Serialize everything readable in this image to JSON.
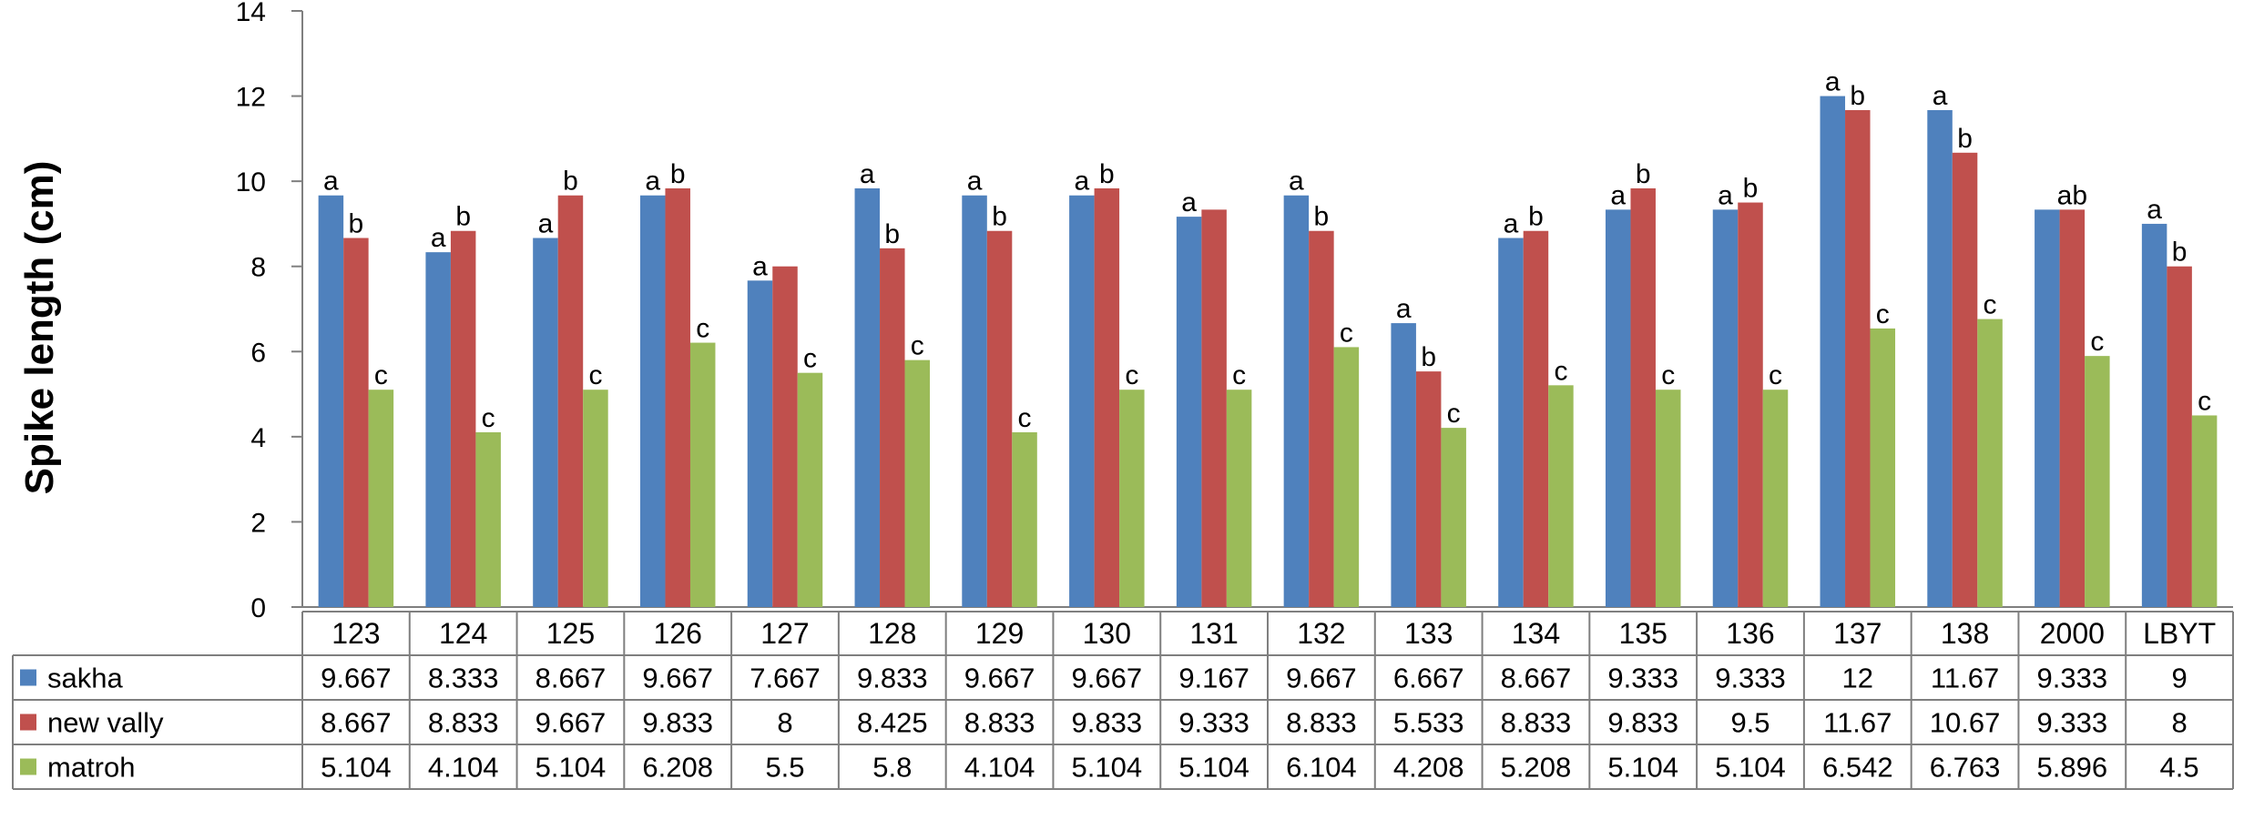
{
  "chart_data": {
    "type": "bar",
    "title": "",
    "xlabel": "",
    "ylabel": "Spike length  (cm)",
    "ylim": [
      0,
      14
    ],
    "yticks": [
      0,
      2,
      4,
      6,
      8,
      10,
      12,
      14
    ],
    "grid": false,
    "legend": "data-table-left",
    "categories": [
      "123",
      "124",
      "125",
      "126",
      "127",
      "128",
      "129",
      "130",
      "131",
      "132",
      "133",
      "134",
      "135",
      "136",
      "137",
      "138",
      "2000",
      "LBYT"
    ],
    "series": [
      {
        "name": "sakha",
        "color": "#4F81BD",
        "values": [
          9.667,
          8.333,
          8.667,
          9.667,
          7.667,
          9.833,
          9.667,
          9.667,
          9.167,
          9.667,
          6.667,
          8.667,
          9.333,
          9.333,
          12,
          11.67,
          9.333,
          9
        ],
        "labels": [
          "9.667",
          "8.333",
          "8.667",
          "9.667",
          "7.667",
          "9.833",
          "9.667",
          "9.667",
          "9.167",
          "9.667",
          "6.667",
          "8.667",
          "9.333",
          "9.333",
          "12",
          "11.67",
          "9.333",
          "9"
        ],
        "letters": [
          "a",
          "a",
          "a",
          "a",
          "a",
          "a",
          "a",
          "a",
          "a",
          "a",
          "a",
          "a",
          "a",
          "a",
          "a",
          "a",
          "",
          "a"
        ]
      },
      {
        "name": "new vally",
        "color": "#C0504D",
        "values": [
          8.667,
          8.833,
          9.667,
          9.833,
          8,
          8.425,
          8.833,
          9.833,
          9.333,
          8.833,
          5.533,
          8.833,
          9.833,
          9.5,
          11.67,
          10.67,
          9.333,
          8
        ],
        "labels": [
          "8.667",
          "8.833",
          "9.667",
          "9.833",
          "8",
          "8.425",
          "8.833",
          "9.833",
          "9.333",
          "8.833",
          "5.533",
          "8.833",
          "9.833",
          "9.5",
          "11.67",
          "10.67",
          "9.333",
          "8"
        ],
        "letters": [
          "b",
          "b",
          "b",
          "b",
          "",
          "b",
          "b",
          "b",
          "",
          "b",
          "b",
          "b",
          "b",
          "b",
          "b",
          "b",
          "ab",
          "b"
        ]
      },
      {
        "name": "matroh",
        "color": "#9BBB59",
        "values": [
          5.104,
          4.104,
          5.104,
          6.208,
          5.5,
          5.8,
          4.104,
          5.104,
          5.104,
          6.104,
          4.208,
          5.208,
          5.104,
          5.104,
          6.542,
          6.763,
          5.896,
          4.5
        ],
        "labels": [
          "5.104",
          "4.104",
          "5.104",
          "6.208",
          "5.5",
          "5.8",
          "4.104",
          "5.104",
          "5.104",
          "6.104",
          "4.208",
          "5.208",
          "5.104",
          "5.104",
          "6.542",
          "6.763",
          "5.896",
          "4.5"
        ],
        "letters": [
          "c",
          "c",
          "c",
          "c",
          "c",
          "c",
          "c",
          "c",
          "c",
          "c",
          "c",
          "c",
          "c",
          "c",
          "c",
          "c",
          "c",
          "c"
        ]
      }
    ]
  }
}
